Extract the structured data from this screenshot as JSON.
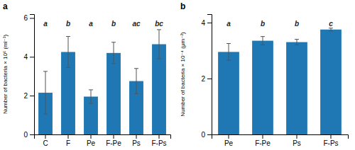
{
  "chart_data": [
    {
      "type": "bar",
      "title": "a",
      "categories": [
        "C",
        "F",
        "Pe",
        "F-Pe",
        "Ps",
        "F-Ps"
      ],
      "values": [
        2.15,
        4.25,
        1.95,
        4.2,
        2.75,
        4.65
      ],
      "errors": [
        1.1,
        0.8,
        0.35,
        0.55,
        0.65,
        0.75
      ],
      "annotations": [
        "a",
        "b",
        "a",
        "b",
        "ac",
        "bc"
      ],
      "ylabel": "Number of bacteria × 10⁶ (ml⁻¹)",
      "ylim": [
        0,
        6.2
      ],
      "yticks": [
        0,
        2,
        4,
        6
      ],
      "grid": false
    },
    {
      "type": "bar",
      "title": "b",
      "categories": [
        "Pe",
        "F-Pe",
        "Ps",
        "F-Ps"
      ],
      "values": [
        2.95,
        3.35,
        3.3,
        3.75
      ],
      "errors": [
        0.3,
        0.15,
        0.1,
        0.05
      ],
      "annotations": [
        "a",
        "b",
        "b",
        "c"
      ],
      "ylabel": "Number of bacteria × 10⁻⁴ (μm⁻²)",
      "ylim": [
        0,
        4.3
      ],
      "yticks": [
        0,
        2,
        4
      ],
      "grid": false
    }
  ]
}
